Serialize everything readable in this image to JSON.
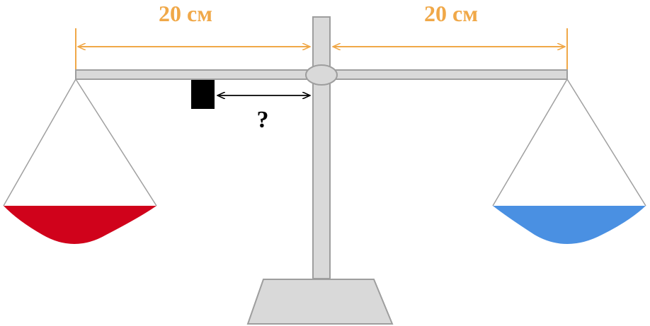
{
  "labels": {
    "left_distance": "20 см",
    "right_distance": "20 см",
    "unknown_distance": "?"
  },
  "colors": {
    "dimension": "#f0a848",
    "frame": "#d9d9d9",
    "frame_stroke": "#9e9e9e",
    "left_pan": "#d0021b",
    "right_pan": "#4a90e2",
    "weight": "#000000",
    "arrow": "#000000"
  }
}
